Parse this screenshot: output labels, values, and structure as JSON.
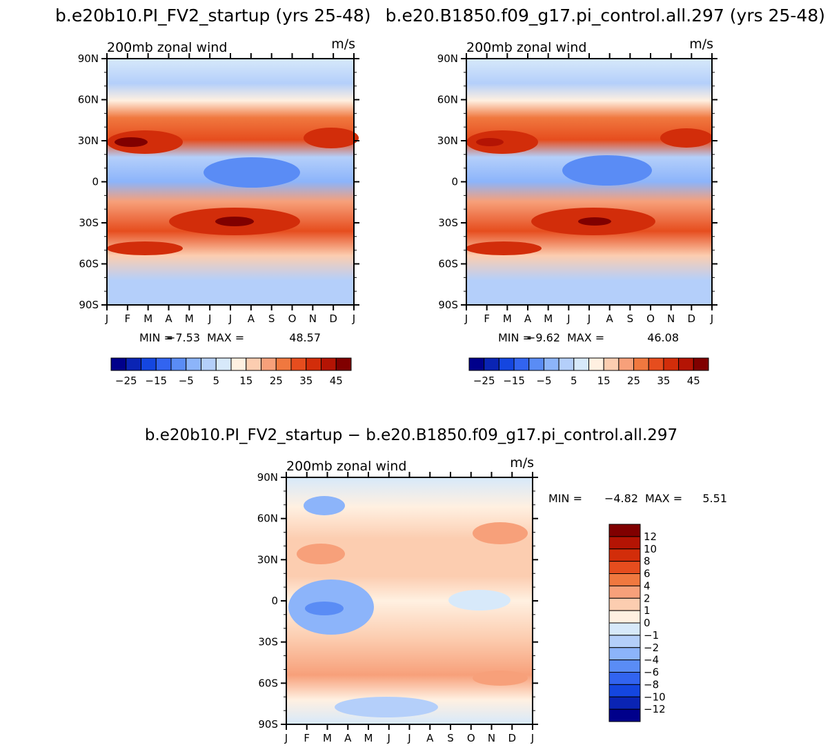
{
  "header": {
    "left_title": "b.e20b10.PI_FV2_startup (yrs 25-48)",
    "right_title": "b.e20.B1850.f09_g17.pi_control.all.297 (yrs 25-48)",
    "diff_title": "b.e20b10.PI_FV2_startup − b.e20.B1850.f09_g17.pi_control.all.297"
  },
  "chart_data": [
    {
      "type": "heatmap",
      "id": "left",
      "title": "200mb zonal wind",
      "units": "m/s",
      "x_ticks": [
        "J",
        "F",
        "M",
        "A",
        "M",
        "J",
        "J",
        "A",
        "S",
        "O",
        "N",
        "D",
        "J"
      ],
      "y_ticks": [
        "90N",
        "60N",
        "30N",
        "0",
        "30S",
        "60S",
        "90S"
      ],
      "min_label": "MIN =",
      "min_value": "−7.53",
      "max_label": "MAX =",
      "max_value": "48.57",
      "colorbar": {
        "orientation": "horizontal",
        "tick_labels": [
          "−25",
          "−15",
          "−5",
          "5",
          "15",
          "25",
          "35",
          "45"
        ],
        "colors": [
          "#00008b",
          "#0a24b4",
          "#1446e0",
          "#3264f0",
          "#5a8cf5",
          "#8cb4fa",
          "#b4cffa",
          "#d7e9fa",
          "#fff0e1",
          "#fccdb0",
          "#f7a07a",
          "#f0783f",
          "#e64d1e",
          "#d22d0a",
          "#b41404",
          "#800000"
        ]
      }
    },
    {
      "type": "heatmap",
      "id": "right",
      "title": "200mb zonal wind",
      "units": "m/s",
      "x_ticks": [
        "J",
        "F",
        "M",
        "A",
        "M",
        "J",
        "J",
        "A",
        "S",
        "O",
        "N",
        "D",
        "J"
      ],
      "y_ticks": [
        "90N",
        "60N",
        "30N",
        "0",
        "30S",
        "60S",
        "90S"
      ],
      "min_label": "MIN =",
      "min_value": "−9.62",
      "max_label": "MAX =",
      "max_value": "46.08",
      "colorbar": {
        "orientation": "horizontal",
        "tick_labels": [
          "−25",
          "−15",
          "−5",
          "5",
          "15",
          "25",
          "35",
          "45"
        ],
        "colors": [
          "#00008b",
          "#0a24b4",
          "#1446e0",
          "#3264f0",
          "#5a8cf5",
          "#8cb4fa",
          "#b4cffa",
          "#d7e9fa",
          "#fff0e1",
          "#fccdb0",
          "#f7a07a",
          "#f0783f",
          "#e64d1e",
          "#d22d0a",
          "#b41404",
          "#800000"
        ]
      }
    },
    {
      "type": "heatmap",
      "id": "diff",
      "title": "200mb zonal wind",
      "units": "m/s",
      "x_ticks": [
        "J",
        "F",
        "M",
        "A",
        "M",
        "J",
        "J",
        "A",
        "S",
        "O",
        "N",
        "D",
        "J"
      ],
      "y_ticks": [
        "90N",
        "60N",
        "30N",
        "0",
        "30S",
        "60S",
        "90S"
      ],
      "min_label": "MIN =",
      "min_value": "−4.82",
      "max_label": "MAX =",
      "max_value": "5.51",
      "colorbar": {
        "orientation": "vertical",
        "tick_labels": [
          "12",
          "10",
          "8",
          "6",
          "4",
          "2",
          "1",
          "0",
          "−1",
          "−2",
          "−4",
          "−6",
          "−8",
          "−10",
          "−12"
        ],
        "colors": [
          "#800000",
          "#b41404",
          "#d22d0a",
          "#e64d1e",
          "#f0783f",
          "#f7a07a",
          "#fccdb0",
          "#fff0e1",
          "#d7e9fa",
          "#b4cffa",
          "#8cb4fa",
          "#5a8cf5",
          "#3264f0",
          "#1446e0",
          "#0a24b4",
          "#00008b"
        ]
      }
    }
  ]
}
